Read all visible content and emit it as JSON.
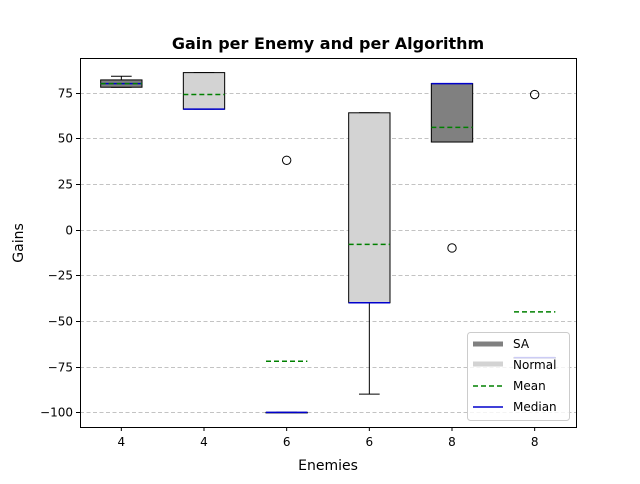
{
  "chart_data": {
    "type": "box",
    "title": "Gain per Enemy and per Algorithm",
    "xlabel": "Enemies",
    "ylabel": "Gains",
    "ylim": [
      -108,
      94
    ],
    "yticks": [
      -100,
      -75,
      -50,
      -25,
      0,
      25,
      50,
      75
    ],
    "grid": "horizontal dashed",
    "legend_position": "lower-right",
    "legend": [
      {
        "label": "SA",
        "style": "thick-line",
        "color": "#808080"
      },
      {
        "label": "Normal",
        "style": "thick-line",
        "color": "#d3d3d3"
      },
      {
        "label": "Mean",
        "style": "dashed",
        "color": "#008000"
      },
      {
        "label": "Median",
        "style": "solid",
        "color": "#0000cc"
      }
    ],
    "boxes": [
      {
        "label": "4",
        "group": "SA",
        "fill": "#808080",
        "whislo": 78,
        "q1": 78,
        "med": 80,
        "q3": 82,
        "whishi": 84,
        "mean": 80,
        "fliers": []
      },
      {
        "label": "4",
        "group": "Normal",
        "fill": "#d3d3d3",
        "whislo": 66,
        "q1": 66,
        "med": 66,
        "q3": 86,
        "whishi": 86,
        "mean": 74,
        "fliers": []
      },
      {
        "label": "6",
        "group": "SA",
        "fill": "#808080",
        "whislo": -100,
        "q1": -100,
        "med": -100,
        "q3": -100,
        "whishi": -100,
        "mean": -72,
        "fliers": [
          38
        ]
      },
      {
        "label": "6",
        "group": "Normal",
        "fill": "#d3d3d3",
        "whislo": -90,
        "q1": -40,
        "med": -40,
        "q3": 64,
        "whishi": 64,
        "mean": -8,
        "fliers": []
      },
      {
        "label": "8",
        "group": "SA",
        "fill": "#808080",
        "whislo": 48,
        "q1": 48,
        "med": 80,
        "q3": 80,
        "whishi": 80,
        "mean": 56,
        "fliers": [
          -10
        ]
      },
      {
        "label": "8",
        "group": "Normal",
        "fill": "#d3d3d3",
        "whislo": -70,
        "q1": -70,
        "med": -70,
        "q3": -70,
        "whishi": -70,
        "mean": -45,
        "fliers": [
          74
        ]
      }
    ],
    "colors": {
      "mean": "#008000",
      "median": "#0000cc",
      "grid": "#b0b0b0"
    }
  }
}
